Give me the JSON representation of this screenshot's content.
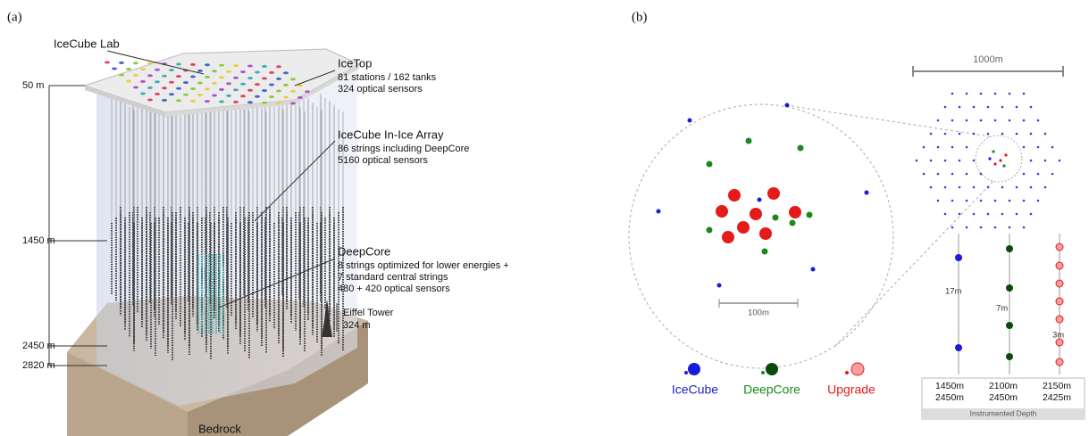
{
  "panel_a": {
    "label": "(a)",
    "lab": "IceCube Lab",
    "icetop": {
      "title": "IceTop",
      "lines": [
        "81 stations / 162 tanks",
        "324 optical sensors"
      ]
    },
    "in_ice": {
      "title": "IceCube In-Ice Array",
      "lines": [
        "86 strings including DeepCore",
        "5160 optical sensors"
      ]
    },
    "deepcore": {
      "title": "DeepCore",
      "lines": [
        "8 strings optimized for lower energies +",
        "7 standard central strings",
        "480 + 420 optical sensors"
      ]
    },
    "eiffel": {
      "title": "Eiffel Tower",
      "height": "324 m"
    },
    "depths": [
      "50 m",
      "1450 m",
      "2450 m",
      "2820 m"
    ],
    "bedrock": "Bedrock"
  },
  "panel_b": {
    "label": "(b)",
    "scale_large": "1000m",
    "scale_small": "100m",
    "spacings": [
      "17m",
      "7m",
      "3m"
    ],
    "legend": [
      "IceCube",
      "DeepCore",
      "Upgrade"
    ],
    "depth_table": {
      "columns": [
        [
          "1450m",
          "2450m"
        ],
        [
          "2100m",
          "2450m"
        ],
        [
          "2150m",
          "2425m"
        ]
      ],
      "caption": "Instrumented Depth"
    }
  }
}
